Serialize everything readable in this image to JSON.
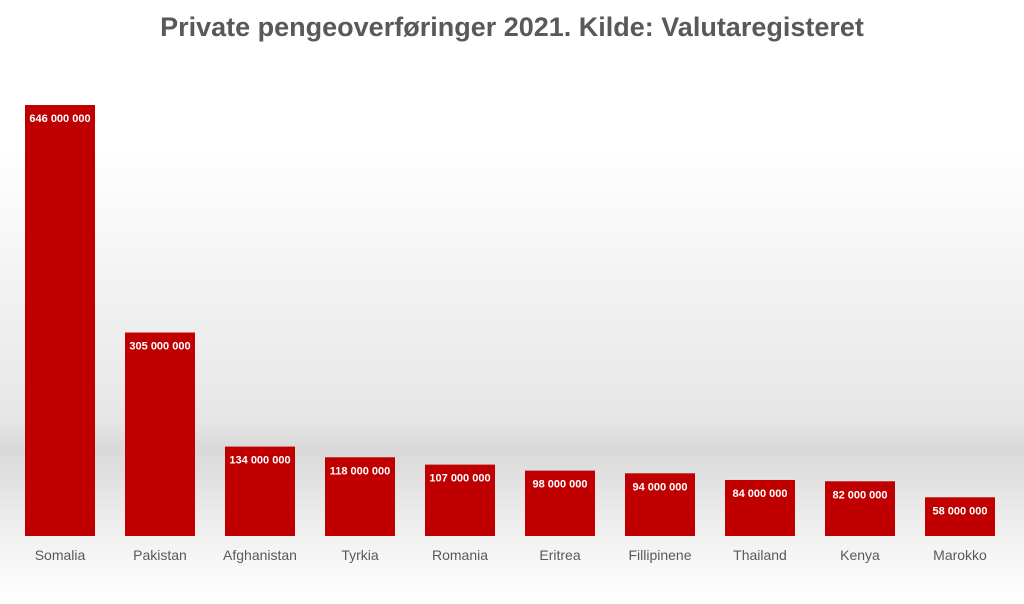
{
  "chart_data": {
    "type": "bar",
    "title": "Private pengeoverføringer 2021. Kilde: Valutaregisteret",
    "xlabel": "",
    "ylabel": "",
    "categories": [
      "Somalia",
      "Pakistan",
      "Afghanistan",
      "Tyrkia",
      "Romania",
      "Eritrea",
      "Fillipinene",
      "Thailand",
      "Kenya",
      "Marokko"
    ],
    "values": [
      646000000,
      305000000,
      134000000,
      118000000,
      107000000,
      98000000,
      94000000,
      84000000,
      82000000,
      58000000
    ],
    "value_labels": [
      "646 000 000",
      "305 000 000",
      "134 000 000",
      "118 000 000",
      "107 000 000",
      "98 000 000",
      "94 000 000",
      "84 000 000",
      "82 000 000",
      "58 000 000"
    ],
    "ylim": [
      0,
      646000000
    ],
    "bar_color": "#c00000",
    "grid": false,
    "legend": "none"
  }
}
